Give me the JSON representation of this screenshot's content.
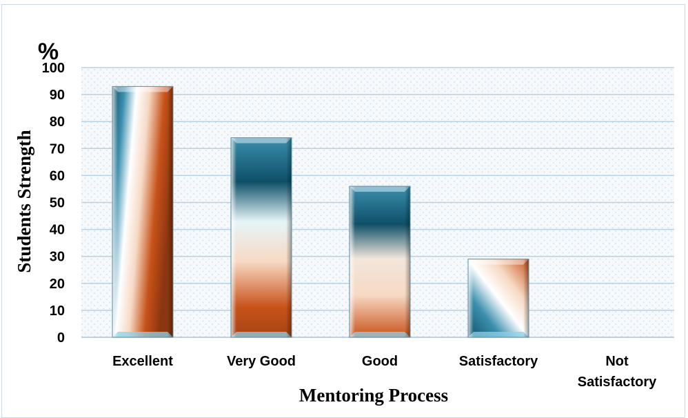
{
  "chart_data": {
    "type": "bar",
    "title": "",
    "unit_label": "%",
    "xlabel": "Mentoring Process",
    "ylabel": "Students Strength",
    "categories": [
      "Excellent",
      "Very Good",
      "Good",
      "Satisfactory",
      "Not Satisfactory"
    ],
    "category_lines": [
      [
        "Excellent"
      ],
      [
        "Very Good"
      ],
      [
        "Good"
      ],
      [
        "Satisfactory"
      ],
      [
        "Not",
        "Satisfactory"
      ]
    ],
    "values": [
      93,
      74,
      56,
      29,
      0
    ],
    "ylim": [
      0,
      100
    ],
    "yticks": [
      "0",
      "10",
      "20",
      "30",
      "40",
      "50",
      "60",
      "70",
      "80",
      "90",
      "100"
    ],
    "grid": true,
    "legend": "none",
    "colors": {
      "teal_dark": "#0e5068",
      "teal": "#3c8fae",
      "teal_light": "#8fd2e8",
      "orange": "#c8521a",
      "peach": "#f7d9c4",
      "grid": "#b7d2e6",
      "dots": "#c7d9ea"
    }
  }
}
